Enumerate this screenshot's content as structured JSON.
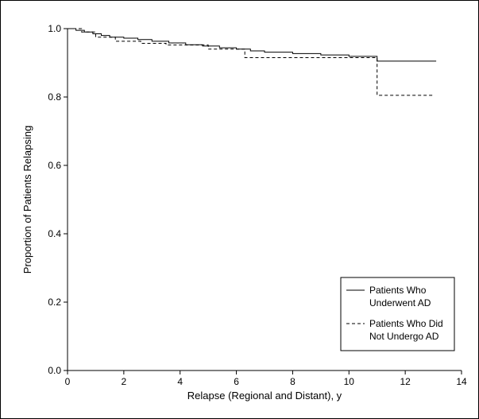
{
  "chart_data": {
    "type": "line",
    "title": "",
    "xlabel": "Relapse (Regional and Distant), y",
    "ylabel": "Proportion of Patients Relapsing",
    "xlim": [
      0,
      14
    ],
    "ylim": [
      0.0,
      1.0
    ],
    "xticks": [
      "0",
      "2",
      "4",
      "6",
      "8",
      "10",
      "12",
      "14"
    ],
    "yticks": [
      "0.0",
      "0.2",
      "0.4",
      "0.6",
      "0.8",
      "1.0"
    ],
    "grid": false,
    "legend_position": "bottom-right",
    "legend": [
      {
        "lines": [
          "Patients Who",
          "Underwent AD"
        ],
        "style": "solid"
      },
      {
        "lines": [
          "Patients Who Did",
          "Not Undergo AD"
        ],
        "style": "dashed"
      }
    ],
    "series": [
      {
        "style": "solid",
        "step": true,
        "x": [
          0,
          0.3,
          0.6,
          0.9,
          1.2,
          1.5,
          2.0,
          2.5,
          3.0,
          3.6,
          4.2,
          4.8,
          5.4,
          6.0,
          6.5,
          7.0,
          8.0,
          9.0,
          10.0,
          11.0,
          13.1
        ],
        "y": [
          1.0,
          0.995,
          0.99,
          0.985,
          0.98,
          0.975,
          0.972,
          0.968,
          0.963,
          0.958,
          0.953,
          0.949,
          0.944,
          0.94,
          0.935,
          0.931,
          0.927,
          0.923,
          0.919,
          0.905,
          0.905
        ]
      },
      {
        "style": "dashed",
        "step": true,
        "x": [
          0,
          0.5,
          1.0,
          1.7,
          2.6,
          3.5,
          5.0,
          6.3,
          7.5,
          9.0,
          11.0,
          13.0
        ],
        "y": [
          1.0,
          0.99,
          0.975,
          0.963,
          0.957,
          0.952,
          0.94,
          0.915,
          0.915,
          0.915,
          0.805,
          0.805
        ]
      }
    ]
  }
}
